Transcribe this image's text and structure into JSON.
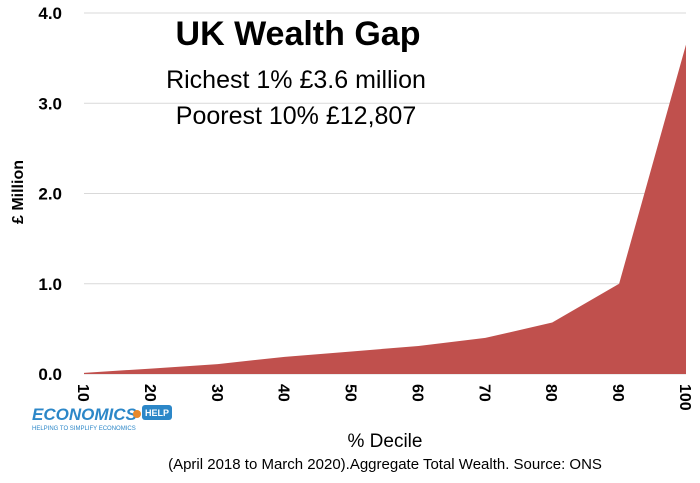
{
  "chart_data": {
    "type": "area",
    "title": "UK Wealth Gap",
    "subtitle_lines": [
      "Richest 1% £3.6 million",
      "Poorest 10% £12,807"
    ],
    "xlabel": "% Decile",
    "ylabel": "£ Million",
    "x_categories": [
      "10",
      "20",
      "30",
      "40",
      "50",
      "60",
      "70",
      "80",
      "90",
      "100"
    ],
    "y_ticks": [
      "0.0",
      "1.0",
      "2.0",
      "3.0",
      "4.0"
    ],
    "ylim": [
      0,
      4
    ],
    "series": [
      {
        "values": [
          0.013,
          0.06,
          0.11,
          0.19,
          0.25,
          0.31,
          0.4,
          0.57,
          1.0,
          3.65
        ]
      }
    ],
    "fill_color": "#c0504d",
    "source_note": "(April 2018 to March 2020).Aggregate Total Wealth. Source: ONS",
    "logo": {
      "text": "ECONOMICS",
      "badge": "HELP",
      "tagline": "HELPING TO SIMPLIFY ECONOMICS"
    }
  }
}
